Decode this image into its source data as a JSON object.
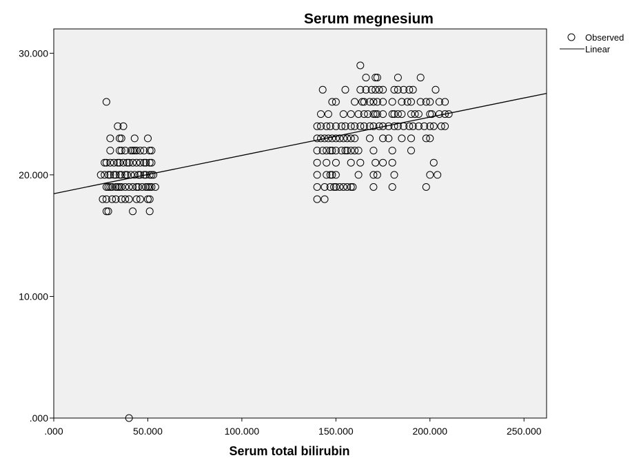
{
  "chart_data": {
    "type": "scatter",
    "title": "Serum megnesium",
    "xlabel": "Serum total bilirubin",
    "ylabel": "",
    "xlim": [
      0,
      262
    ],
    "ylim": [
      0,
      32
    ],
    "x_ticks": [
      0,
      50,
      100,
      150,
      200,
      250
    ],
    "y_ticks": [
      0,
      10,
      20,
      30
    ],
    "x_tick_labels": [
      ".000",
      "50.000",
      "100.000",
      "150.000",
      "200.000",
      "250.000"
    ],
    "y_tick_labels": [
      ".000",
      "10.000",
      "20.000",
      "30.000"
    ],
    "grid": false,
    "legend_position": "outside-top-right",
    "colors": {
      "plot_background": "#f0f0f0",
      "points": "#000000",
      "line": "#000000"
    },
    "series": [
      {
        "name": "Observed",
        "kind": "scatter",
        "marker": "open-circle",
        "points": [
          [
            40,
            0
          ],
          [
            28,
            17
          ],
          [
            29,
            17
          ],
          [
            42,
            17
          ],
          [
            51,
            17
          ],
          [
            26,
            18
          ],
          [
            28,
            18
          ],
          [
            31,
            18
          ],
          [
            33,
            18
          ],
          [
            36,
            18
          ],
          [
            38,
            18
          ],
          [
            40,
            18
          ],
          [
            44,
            18
          ],
          [
            46,
            18
          ],
          [
            50,
            18
          ],
          [
            51,
            18
          ],
          [
            28,
            19
          ],
          [
            29,
            19
          ],
          [
            30,
            19
          ],
          [
            31,
            19
          ],
          [
            33,
            19
          ],
          [
            34,
            19
          ],
          [
            35,
            19
          ],
          [
            36,
            19
          ],
          [
            38,
            19
          ],
          [
            40,
            19
          ],
          [
            42,
            19
          ],
          [
            44,
            19
          ],
          [
            45,
            19
          ],
          [
            47,
            19
          ],
          [
            49,
            19
          ],
          [
            50,
            19
          ],
          [
            51,
            19
          ],
          [
            52,
            19
          ],
          [
            54,
            19
          ],
          [
            25,
            20
          ],
          [
            27,
            20
          ],
          [
            29,
            20
          ],
          [
            30,
            20
          ],
          [
            32,
            20
          ],
          [
            33,
            20
          ],
          [
            35,
            20
          ],
          [
            36,
            20
          ],
          [
            38,
            20
          ],
          [
            39,
            20
          ],
          [
            41,
            20
          ],
          [
            43,
            20
          ],
          [
            45,
            20
          ],
          [
            46,
            20
          ],
          [
            48,
            20
          ],
          [
            49,
            20
          ],
          [
            51,
            20
          ],
          [
            52,
            20
          ],
          [
            53,
            20
          ],
          [
            27,
            21
          ],
          [
            28,
            21
          ],
          [
            30,
            21
          ],
          [
            32,
            21
          ],
          [
            34,
            21
          ],
          [
            35,
            21
          ],
          [
            37,
            21
          ],
          [
            39,
            21
          ],
          [
            40,
            21
          ],
          [
            42,
            21
          ],
          [
            44,
            21
          ],
          [
            46,
            21
          ],
          [
            48,
            21
          ],
          [
            49,
            21
          ],
          [
            51,
            21
          ],
          [
            52,
            21
          ],
          [
            30,
            22
          ],
          [
            35,
            22
          ],
          [
            36,
            22
          ],
          [
            38,
            22
          ],
          [
            41,
            22
          ],
          [
            42,
            22
          ],
          [
            43,
            22
          ],
          [
            44,
            22
          ],
          [
            46,
            22
          ],
          [
            48,
            22
          ],
          [
            51,
            22
          ],
          [
            52,
            22
          ],
          [
            30,
            23
          ],
          [
            35,
            23
          ],
          [
            36,
            23
          ],
          [
            43,
            23
          ],
          [
            50,
            23
          ],
          [
            34,
            24
          ],
          [
            37,
            24
          ],
          [
            28,
            26
          ],
          [
            140,
            18
          ],
          [
            144,
            18
          ],
          [
            140,
            19
          ],
          [
            144,
            19
          ],
          [
            147,
            19
          ],
          [
            149,
            19
          ],
          [
            150,
            19
          ],
          [
            152,
            19
          ],
          [
            154,
            19
          ],
          [
            156,
            19
          ],
          [
            158,
            19
          ],
          [
            159,
            19
          ],
          [
            170,
            19
          ],
          [
            180,
            19
          ],
          [
            198,
            19
          ],
          [
            140,
            20
          ],
          [
            145,
            20
          ],
          [
            147,
            20
          ],
          [
            148,
            20
          ],
          [
            150,
            20
          ],
          [
            162,
            20
          ],
          [
            170,
            20
          ],
          [
            172,
            20
          ],
          [
            181,
            20
          ],
          [
            200,
            20
          ],
          [
            204,
            20
          ],
          [
            140,
            21
          ],
          [
            145,
            21
          ],
          [
            150,
            21
          ],
          [
            158,
            21
          ],
          [
            163,
            21
          ],
          [
            171,
            21
          ],
          [
            175,
            21
          ],
          [
            180,
            21
          ],
          [
            202,
            21
          ],
          [
            140,
            22
          ],
          [
            143,
            22
          ],
          [
            145,
            22
          ],
          [
            147,
            22
          ],
          [
            148,
            22
          ],
          [
            150,
            22
          ],
          [
            153,
            22
          ],
          [
            155,
            22
          ],
          [
            156,
            22
          ],
          [
            158,
            22
          ],
          [
            160,
            22
          ],
          [
            162,
            22
          ],
          [
            170,
            22
          ],
          [
            180,
            22
          ],
          [
            190,
            22
          ],
          [
            140,
            23
          ],
          [
            142,
            23
          ],
          [
            144,
            23
          ],
          [
            146,
            23
          ],
          [
            148,
            23
          ],
          [
            150,
            23
          ],
          [
            152,
            23
          ],
          [
            154,
            23
          ],
          [
            156,
            23
          ],
          [
            158,
            23
          ],
          [
            160,
            23
          ],
          [
            168,
            23
          ],
          [
            175,
            23
          ],
          [
            178,
            23
          ],
          [
            185,
            23
          ],
          [
            190,
            23
          ],
          [
            198,
            23
          ],
          [
            200,
            23
          ],
          [
            140,
            24
          ],
          [
            142,
            24
          ],
          [
            145,
            24
          ],
          [
            147,
            24
          ],
          [
            150,
            24
          ],
          [
            153,
            24
          ],
          [
            155,
            24
          ],
          [
            158,
            24
          ],
          [
            160,
            24
          ],
          [
            163,
            24
          ],
          [
            165,
            24
          ],
          [
            168,
            24
          ],
          [
            170,
            24
          ],
          [
            173,
            24
          ],
          [
            175,
            24
          ],
          [
            178,
            24
          ],
          [
            181,
            24
          ],
          [
            183,
            24
          ],
          [
            186,
            24
          ],
          [
            189,
            24
          ],
          [
            191,
            24
          ],
          [
            194,
            24
          ],
          [
            197,
            24
          ],
          [
            200,
            24
          ],
          [
            202,
            24
          ],
          [
            206,
            24
          ],
          [
            208,
            24
          ],
          [
            142,
            25
          ],
          [
            146,
            25
          ],
          [
            154,
            25
          ],
          [
            158,
            25
          ],
          [
            162,
            25
          ],
          [
            165,
            25
          ],
          [
            167,
            25
          ],
          [
            170,
            25
          ],
          [
            171,
            25
          ],
          [
            172,
            25
          ],
          [
            175,
            25
          ],
          [
            180,
            25
          ],
          [
            181,
            25
          ],
          [
            183,
            25
          ],
          [
            185,
            25
          ],
          [
            190,
            25
          ],
          [
            192,
            25
          ],
          [
            194,
            25
          ],
          [
            200,
            25
          ],
          [
            201,
            25
          ],
          [
            205,
            25
          ],
          [
            208,
            25
          ],
          [
            210,
            25
          ],
          [
            148,
            26
          ],
          [
            150,
            26
          ],
          [
            160,
            26
          ],
          [
            164,
            26
          ],
          [
            165,
            26
          ],
          [
            168,
            26
          ],
          [
            170,
            26
          ],
          [
            172,
            26
          ],
          [
            175,
            26
          ],
          [
            180,
            26
          ],
          [
            185,
            26
          ],
          [
            188,
            26
          ],
          [
            190,
            26
          ],
          [
            195,
            26
          ],
          [
            198,
            26
          ],
          [
            200,
            26
          ],
          [
            205,
            26
          ],
          [
            208,
            26
          ],
          [
            143,
            27
          ],
          [
            155,
            27
          ],
          [
            163,
            27
          ],
          [
            166,
            27
          ],
          [
            169,
            27
          ],
          [
            171,
            27
          ],
          [
            173,
            27
          ],
          [
            175,
            27
          ],
          [
            181,
            27
          ],
          [
            183,
            27
          ],
          [
            186,
            27
          ],
          [
            189,
            27
          ],
          [
            191,
            27
          ],
          [
            203,
            27
          ],
          [
            166,
            28
          ],
          [
            171,
            28
          ],
          [
            172,
            28
          ],
          [
            183,
            28
          ],
          [
            195,
            28
          ],
          [
            163,
            29
          ]
        ]
      },
      {
        "name": "Linear",
        "kind": "line",
        "x": [
          0,
          262
        ],
        "y": [
          18.45,
          26.7
        ]
      }
    ]
  }
}
